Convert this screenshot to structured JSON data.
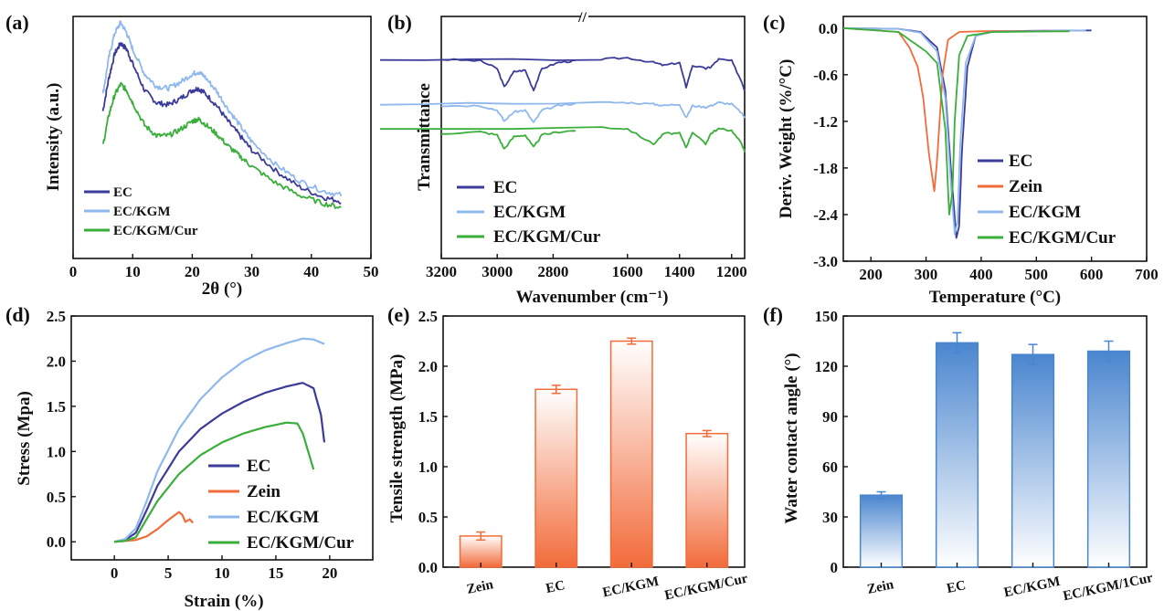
{
  "colors": {
    "ec": "#3b3b9a",
    "zein": "#f26b3a",
    "kgm": "#8fb8ec",
    "cur": "#3aae3a",
    "bar_e": "#f26b3a",
    "bar_f": "#4a86cf"
  },
  "panels": {
    "a": {
      "label": "(a)",
      "xlabel": "2θ (°)",
      "ylabel": "Intensity (a.u.)",
      "xticks": [
        "0",
        "10",
        "20",
        "30",
        "40",
        "50"
      ]
    },
    "b": {
      "label": "(b)",
      "xlabel": "Wavenumber (cm⁻¹)",
      "ylabel": "Transmittance",
      "xticks": [
        "3200",
        "3000",
        "2800",
        "1600",
        "1400",
        "1200"
      ]
    },
    "c": {
      "label": "(c)",
      "xlabel": "Temperature (°C)",
      "ylabel": "Deriv. Weight (%/°C)",
      "xticks": [
        "200",
        "300",
        "400",
        "500",
        "600",
        "700"
      ],
      "yticks": [
        "0.0",
        "-0.6",
        "-1.2",
        "-1.8",
        "-2.4",
        "-3.0"
      ]
    },
    "d": {
      "label": "(d)",
      "xlabel": "Strain (%)",
      "ylabel": "Stress (Mpa)",
      "xticks": [
        "0",
        "5",
        "10",
        "15",
        "20"
      ],
      "yticks": [
        "0.0",
        "0.5",
        "1.0",
        "1.5",
        "2.0",
        "2.5"
      ]
    },
    "e": {
      "label": "(e)",
      "ylabel": "Tensile strength (MPa)",
      "yticks": [
        "0.0",
        "0.5",
        "1.0",
        "1.5",
        "2.0",
        "2.5"
      ]
    },
    "f": {
      "label": "(f)",
      "ylabel": "Water contact angle (°)",
      "yticks": [
        "0",
        "30",
        "60",
        "90",
        "120",
        "150"
      ]
    }
  },
  "legends": {
    "a": [
      "EC",
      "EC/KGM",
      "EC/KGM/Cur"
    ],
    "b": [
      "EC",
      "EC/KGM",
      "EC/KGM/Cur"
    ],
    "c": [
      "EC",
      "Zein",
      "EC/KGM",
      "EC/KGM/Cur"
    ],
    "d": [
      "EC",
      "Zein",
      "EC/KGM",
      "EC/KGM/Cur"
    ]
  },
  "chart_data": [
    {
      "id": "a",
      "type": "line",
      "title": "",
      "xlabel": "2θ (°)",
      "ylabel": "Intensity (a.u.)",
      "xlim": [
        0,
        50
      ],
      "series": [
        {
          "name": "EC",
          "x": [
            5,
            6,
            7,
            8,
            9,
            10,
            12,
            14,
            16,
            18,
            20,
            21,
            22,
            24,
            26,
            28,
            30,
            34,
            38,
            42,
            45
          ],
          "y": [
            0.62,
            0.78,
            0.9,
            0.95,
            0.92,
            0.85,
            0.72,
            0.66,
            0.65,
            0.68,
            0.72,
            0.73,
            0.71,
            0.65,
            0.57,
            0.5,
            0.43,
            0.33,
            0.25,
            0.2,
            0.18
          ]
        },
        {
          "name": "EC/KGM",
          "x": [
            5,
            6,
            7,
            8,
            9,
            10,
            12,
            14,
            16,
            18,
            20,
            21,
            22,
            24,
            26,
            28,
            30,
            34,
            38,
            42,
            45
          ],
          "y": [
            0.7,
            0.88,
            1.0,
            1.05,
            1.0,
            0.92,
            0.8,
            0.74,
            0.73,
            0.76,
            0.8,
            0.81,
            0.79,
            0.72,
            0.63,
            0.55,
            0.47,
            0.36,
            0.28,
            0.23,
            0.21
          ]
        },
        {
          "name": "EC/KGM/Cur",
          "x": [
            5,
            6,
            7,
            8,
            9,
            10,
            12,
            14,
            16,
            18,
            20,
            21,
            22,
            24,
            26,
            28,
            30,
            34,
            38,
            42,
            45
          ],
          "y": [
            0.45,
            0.6,
            0.7,
            0.75,
            0.72,
            0.66,
            0.55,
            0.5,
            0.5,
            0.53,
            0.57,
            0.58,
            0.56,
            0.51,
            0.45,
            0.4,
            0.35,
            0.27,
            0.21,
            0.17,
            0.15
          ]
        }
      ]
    },
    {
      "id": "b",
      "type": "line",
      "title": "",
      "xlabel": "Wavenumber (cm⁻¹)",
      "ylabel": "Transmittance",
      "xlim": [
        3200,
        1150
      ],
      "series": [
        {
          "name": "EC",
          "x": [
            3200,
            3060,
            3000,
            2975,
            2940,
            2900,
            2870,
            2840,
            2780,
            2720,
            1700,
            1600,
            1500,
            1460,
            1400,
            1375,
            1350,
            1300,
            1280,
            1250,
            1200,
            1160,
            1150
          ],
          "y": [
            0.9,
            0.89,
            0.84,
            0.72,
            0.82,
            0.83,
            0.7,
            0.84,
            0.88,
            0.89,
            0.9,
            0.91,
            0.88,
            0.86,
            0.88,
            0.72,
            0.86,
            0.84,
            0.85,
            0.9,
            0.89,
            0.75,
            0.7
          ]
        },
        {
          "name": "EC/KGM",
          "x": [
            3200,
            3060,
            3000,
            2975,
            2940,
            2900,
            2870,
            2840,
            2780,
            2720,
            1700,
            1600,
            1500,
            1460,
            1400,
            1375,
            1350,
            1300,
            1280,
            1250,
            1200,
            1160,
            1150
          ],
          "y": [
            0.6,
            0.6,
            0.57,
            0.5,
            0.56,
            0.57,
            0.49,
            0.57,
            0.6,
            0.61,
            0.62,
            0.62,
            0.61,
            0.6,
            0.61,
            0.52,
            0.6,
            0.59,
            0.6,
            0.62,
            0.61,
            0.55,
            0.52
          ]
        },
        {
          "name": "EC/KGM/Cur",
          "x": [
            3200,
            3060,
            3000,
            2975,
            2940,
            2900,
            2870,
            2840,
            2780,
            2720,
            1700,
            1600,
            1500,
            1460,
            1400,
            1375,
            1350,
            1300,
            1280,
            1250,
            1200,
            1160,
            1150
          ],
          "y": [
            0.42,
            0.43,
            0.41,
            0.32,
            0.4,
            0.41,
            0.33,
            0.41,
            0.43,
            0.44,
            0.46,
            0.45,
            0.35,
            0.42,
            0.42,
            0.33,
            0.43,
            0.35,
            0.42,
            0.45,
            0.44,
            0.35,
            0.3
          ]
        }
      ]
    },
    {
      "id": "c",
      "type": "line",
      "title": "",
      "xlabel": "Temperature (°C)",
      "ylabel": "Deriv. Weight (%/°C)",
      "xlim": [
        150,
        700
      ],
      "ylim": [
        -3.0,
        0.15
      ],
      "series": [
        {
          "name": "EC",
          "x": [
            150,
            250,
            290,
            320,
            335,
            345,
            355,
            360,
            365,
            375,
            390,
            420,
            600
          ],
          "y": [
            0.0,
            -0.01,
            -0.05,
            -0.25,
            -0.8,
            -1.8,
            -2.7,
            -2.55,
            -1.6,
            -0.5,
            -0.1,
            -0.04,
            -0.03
          ]
        },
        {
          "name": "Zein",
          "x": [
            150,
            250,
            270,
            285,
            295,
            305,
            315,
            320,
            330,
            340,
            360,
            400,
            560
          ],
          "y": [
            0.0,
            -0.05,
            -0.25,
            -0.5,
            -0.9,
            -1.6,
            -2.1,
            -1.7,
            -0.6,
            -0.15,
            -0.05,
            -0.04,
            -0.04
          ]
        },
        {
          "name": "EC/KGM",
          "x": [
            150,
            250,
            290,
            320,
            335,
            345,
            352,
            357,
            362,
            372,
            390,
            420,
            590
          ],
          "y": [
            0.0,
            -0.01,
            -0.06,
            -0.3,
            -0.9,
            -2.0,
            -2.65,
            -2.5,
            -1.5,
            -0.45,
            -0.1,
            -0.05,
            -0.03
          ]
        },
        {
          "name": "EC/KGM/Cur",
          "x": [
            150,
            250,
            280,
            300,
            320,
            335,
            342,
            348,
            352,
            360,
            375,
            420,
            560
          ],
          "y": [
            0.0,
            -0.05,
            -0.2,
            -0.3,
            -0.45,
            -1.3,
            -2.4,
            -2.1,
            -1.2,
            -0.35,
            -0.1,
            -0.05,
            -0.04
          ]
        }
      ]
    },
    {
      "id": "d",
      "type": "line",
      "title": "",
      "xlabel": "Strain (%)",
      "ylabel": "Stress (Mpa)",
      "xlim": [
        -4,
        24
      ],
      "ylim": [
        -0.2,
        2.5
      ],
      "series": [
        {
          "name": "EC",
          "x": [
            0,
            1,
            2,
            3,
            4,
            6,
            8,
            10,
            12,
            14,
            16,
            17.5,
            18.5,
            19.2,
            19.5
          ],
          "y": [
            0,
            0.02,
            0.1,
            0.35,
            0.62,
            1.0,
            1.25,
            1.42,
            1.55,
            1.65,
            1.72,
            1.76,
            1.7,
            1.4,
            1.1
          ]
        },
        {
          "name": "Zein",
          "x": [
            0,
            1,
            2,
            3,
            4,
            5,
            6,
            6.3,
            6.6,
            7,
            7.3
          ],
          "y": [
            0,
            0.01,
            0.02,
            0.06,
            0.14,
            0.24,
            0.33,
            0.3,
            0.22,
            0.25,
            0.21
          ]
        },
        {
          "name": "EC/KGM",
          "x": [
            0,
            1,
            2,
            3,
            4,
            6,
            8,
            10,
            12,
            14,
            16,
            17.5,
            18.5,
            19.5
          ],
          "y": [
            0,
            0.03,
            0.15,
            0.45,
            0.78,
            1.25,
            1.58,
            1.82,
            2.0,
            2.12,
            2.2,
            2.25,
            2.24,
            2.19
          ]
        },
        {
          "name": "EC/KGM/Cur",
          "x": [
            0,
            1,
            2,
            3,
            4,
            6,
            8,
            10,
            12,
            14,
            16,
            17,
            17.5,
            18.5
          ],
          "y": [
            0,
            0.01,
            0.05,
            0.25,
            0.45,
            0.75,
            0.96,
            1.1,
            1.2,
            1.27,
            1.32,
            1.31,
            1.2,
            0.8
          ]
        }
      ]
    },
    {
      "id": "e",
      "type": "bar",
      "title": "",
      "xlabel": "",
      "ylabel": "Tensile strength (MPa)",
      "ylim": [
        0,
        2.5
      ],
      "categories": [
        "Zein",
        "EC",
        "EC/KGM",
        "EC/KGM/Cur"
      ],
      "values": [
        0.31,
        1.77,
        2.25,
        1.33
      ],
      "errors": [
        0.04,
        0.04,
        0.03,
        0.03
      ]
    },
    {
      "id": "f",
      "type": "bar",
      "title": "",
      "xlabel": "",
      "ylabel": "Water contact angle (°)",
      "ylim": [
        0,
        150
      ],
      "categories": [
        "Zein",
        "EC",
        "EC/KGM",
        "EC/KGM/1Cur"
      ],
      "values": [
        43,
        134,
        127,
        129
      ],
      "errors": [
        2,
        6,
        6,
        6
      ]
    }
  ]
}
